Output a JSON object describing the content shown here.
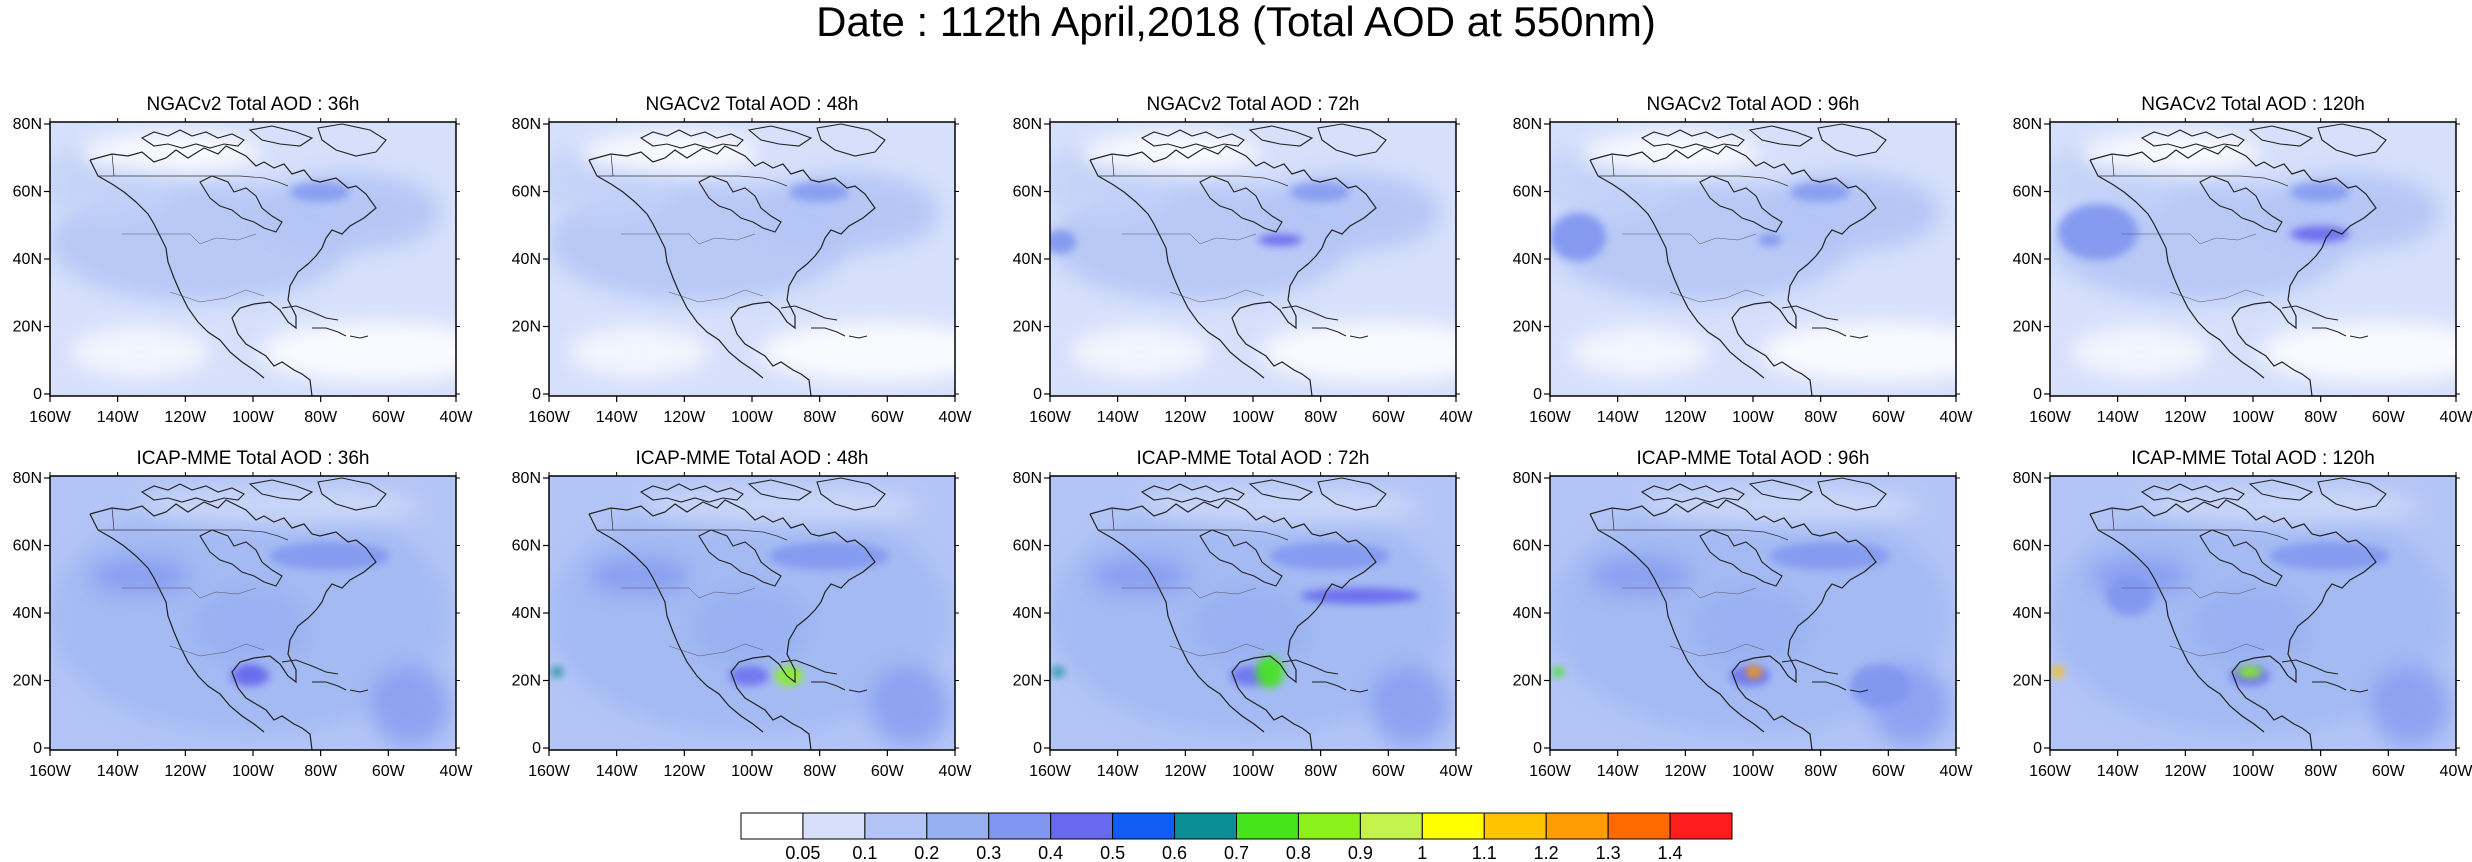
{
  "title": "Date : 112th April,2018 (Total AOD at 550nm)",
  "rows": [
    {
      "model": "NGACv2",
      "panels": [
        {
          "title": "NGACv2 Total AOD : 36h"
        },
        {
          "title": "NGACv2 Total AOD : 48h"
        },
        {
          "title": "NGACv2 Total AOD : 72h"
        },
        {
          "title": "NGACv2 Total AOD : 96h"
        },
        {
          "title": "NGACv2 Total AOD : 120h"
        }
      ]
    },
    {
      "model": "ICAP-MME",
      "panels": [
        {
          "title": "ICAP-MME Total AOD : 36h"
        },
        {
          "title": "ICAP-MME Total AOD : 48h"
        },
        {
          "title": "ICAP-MME Total AOD : 72h"
        },
        {
          "title": "ICAP-MME Total AOD : 96h"
        },
        {
          "title": "ICAP-MME Total AOD : 120h"
        }
      ]
    }
  ],
  "lat_ticks": [
    "80N",
    "60N",
    "40N",
    "20N",
    "0"
  ],
  "lon_ticks": [
    "160W",
    "140W",
    "120W",
    "100W",
    "80W",
    "60W",
    "40W"
  ],
  "colorbar": {
    "labels": [
      "0.05",
      "0.1",
      "0.2",
      "0.3",
      "0.4",
      "0.5",
      "0.6",
      "0.7",
      "0.8",
      "0.9",
      "1",
      "1.1",
      "1.2",
      "1.3",
      "1.4"
    ],
    "colors": [
      "#ffffff",
      "#d6e0fb",
      "#b3c5f6",
      "#97b0f2",
      "#8096f0",
      "#6769ee",
      "#0f5df2",
      "#0a8f96",
      "#44e51a",
      "#8bf11a",
      "#c4f34d",
      "#ffff00",
      "#ffc300",
      "#ff9c00",
      "#ff6a00",
      "#ff1c1c"
    ]
  }
}
